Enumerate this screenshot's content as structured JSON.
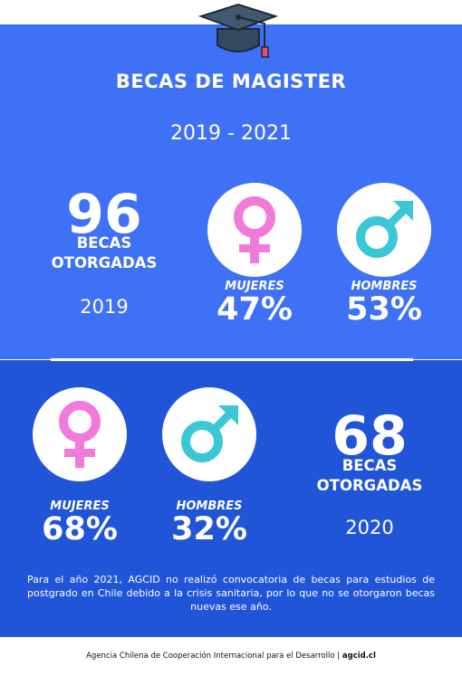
{
  "title": "BECAS DE MAGISTER",
  "period": "2019 - 2021",
  "y2019": {
    "count": "96",
    "label_line1": "BECAS",
    "label_line2": "OTORGADAS",
    "year": "2019",
    "women_label": "MUJERES",
    "women_pct": "47%",
    "men_label": "HOMBRES",
    "men_pct": "53%"
  },
  "y2020": {
    "count": "68",
    "label_line1": "BECAS",
    "label_line2": "OTORGADAS",
    "year": "2020",
    "women_label": "MUJERES",
    "women_pct": "68%",
    "men_label": "HOMBRES",
    "men_pct": "32%"
  },
  "note": "Para el año 2021, AGCID no realizó convocatoria de becas para estudios de postgrado en Chile debido a la crisis sanitaria, por lo que no se otorgaron becas nuevas ese año.",
  "footer": {
    "agency": "Agencia Chilena de Cooperación Internacional para el Desarrollo",
    "separator": "|",
    "site": "agcid.cl"
  },
  "colors": {
    "top_blue": "#3f71f7",
    "bottom_blue": "#2155d8",
    "female": "#f27ad8",
    "male": "#3cc7d6"
  },
  "icons": [
    "graduation-cap-icon",
    "female-symbol-icon",
    "male-symbol-icon"
  ]
}
